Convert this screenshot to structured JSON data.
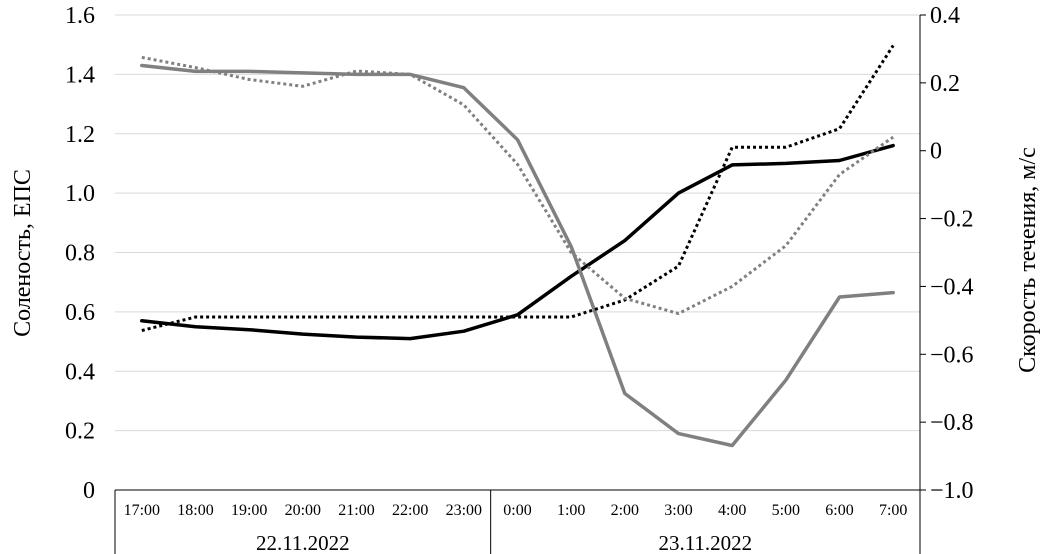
{
  "chart_data": {
    "type": "line",
    "ylabel": "Соленость, ЕПС",
    "y2label": "Скорость течения, м/с",
    "x": [
      "17:00",
      "18:00",
      "19:00",
      "20:00",
      "21:00",
      "22:00",
      "23:00",
      "0:00",
      "1:00",
      "2:00",
      "3:00",
      "4:00",
      "5:00",
      "6:00",
      "7:00"
    ],
    "date_groups": [
      {
        "label": "22.11.2022",
        "count": 7
      },
      {
        "label": "23.11.2022",
        "count": 8
      }
    ],
    "ylim": [
      0,
      1.6
    ],
    "yticks": [
      0,
      0.2,
      0.4,
      0.6,
      0.8,
      1.0,
      1.2,
      1.4,
      1.6
    ],
    "ytick_labels": [
      "0",
      "0.2",
      "0.4",
      "0.6",
      "0.8",
      "1.0",
      "1.2",
      "1.4",
      "1.6"
    ],
    "y2lim": [
      -1.0,
      0.4
    ],
    "y2ticks": [
      -1.0,
      -0.8,
      -0.6,
      -0.4,
      -0.2,
      0,
      0.2,
      0.4
    ],
    "y2tick_labels": [
      "−1.0",
      "−0.8",
      "−0.6",
      "−0.4",
      "−0.2",
      "0",
      "0.2",
      "0.4"
    ],
    "grid": true,
    "series": [
      {
        "axis": "left",
        "color": "#000000",
        "dash": "solid",
        "values": [
          0.57,
          0.55,
          0.54,
          0.525,
          0.515,
          0.51,
          0.535,
          0.59,
          0.72,
          0.84,
          1.0,
          1.095,
          1.1,
          1.11,
          1.16
        ]
      },
      {
        "axis": "left",
        "color": "#808080",
        "dash": "solid",
        "values": [
          1.43,
          1.41,
          1.41,
          1.405,
          1.4,
          1.4,
          1.355,
          1.18,
          0.82,
          0.325,
          0.19,
          0.15,
          0.37,
          0.65,
          0.665
        ]
      },
      {
        "axis": "right",
        "color": "#000000",
        "dash": "dotted",
        "values": [
          -0.53,
          -0.49,
          -0.49,
          -0.49,
          -0.49,
          -0.49,
          -0.49,
          -0.49,
          -0.49,
          -0.44,
          -0.34,
          0.01,
          0.01,
          0.065,
          0.31
        ]
      },
      {
        "axis": "right",
        "color": "#808080",
        "dash": "dotted",
        "values": [
          0.275,
          0.245,
          0.21,
          0.19,
          0.235,
          0.225,
          0.135,
          -0.04,
          -0.3,
          -0.435,
          -0.48,
          -0.4,
          -0.28,
          -0.07,
          0.04
        ]
      }
    ]
  }
}
